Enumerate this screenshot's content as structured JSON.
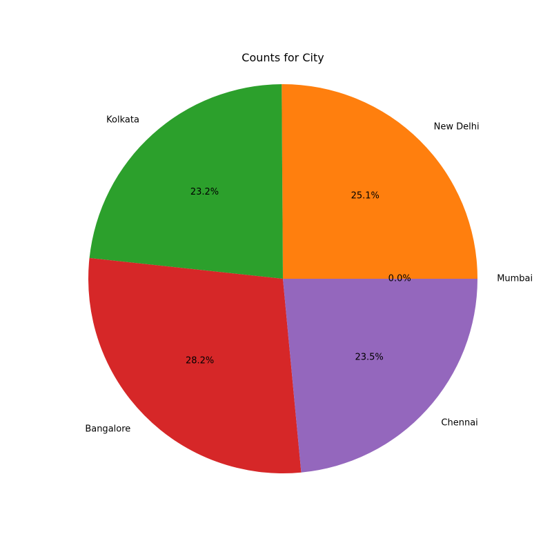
{
  "chart_data": {
    "type": "pie",
    "title": "Counts for City",
    "slices": [
      {
        "label": "Mumbai",
        "percent": 0.0,
        "pct_label": "0.0%",
        "color": "#1f77b4"
      },
      {
        "label": "New Delhi",
        "percent": 25.1,
        "pct_label": "25.1%",
        "color": "#ff7f0e"
      },
      {
        "label": "Kolkata",
        "percent": 23.2,
        "pct_label": "23.2%",
        "color": "#2ca02c"
      },
      {
        "label": "Bangalore",
        "percent": 28.2,
        "pct_label": "28.2%",
        "color": "#d62728"
      },
      {
        "label": "Chennai",
        "percent": 23.5,
        "pct_label": "23.5%",
        "color": "#9467bd"
      }
    ]
  }
}
